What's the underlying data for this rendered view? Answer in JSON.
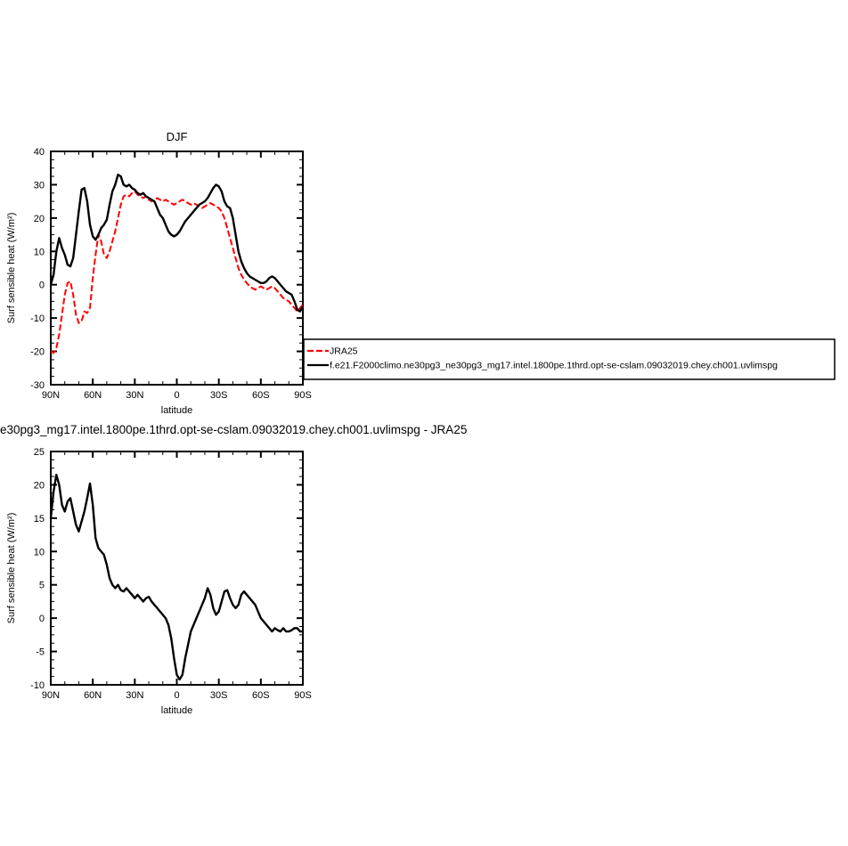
{
  "page": {
    "background": "#ffffff"
  },
  "chart_data": [
    {
      "name": "chart-djf",
      "type": "line",
      "title": "DJF",
      "xlabel": "latitude",
      "ylabel": "Surf sensible heat (W/m²)",
      "xlim": [
        90,
        -90
      ],
      "ylim": [
        -30,
        40
      ],
      "xticks": [
        {
          "v": 90,
          "label": "90N"
        },
        {
          "v": 60,
          "label": "60N"
        },
        {
          "v": 30,
          "label": "30N"
        },
        {
          "v": 0,
          "label": "0"
        },
        {
          "v": -30,
          "label": "30S"
        },
        {
          "v": -60,
          "label": "60S"
        },
        {
          "v": -90,
          "label": "90S"
        }
      ],
      "x_minor_step": 10,
      "ytick_step": 10,
      "y_minor_step": 2.5,
      "grid": false,
      "legend": {
        "position": "right-of-plot",
        "entries": [
          {
            "label": "JRA25",
            "color": "#ff0000",
            "dash": "7 3"
          },
          {
            "label": "f.e21.F2000climo.ne30pg3_ne30pg3_mg17.intel.1800pe.1thrd.opt-se-cslam.09032019.chey.ch001.uvlimspg",
            "color": "#000000",
            "dash": ""
          }
        ]
      },
      "x": [
        90,
        88,
        86,
        84,
        82,
        80,
        78,
        76,
        74,
        72,
        70,
        68,
        66,
        64,
        62,
        60,
        58,
        56,
        54,
        52,
        50,
        48,
        46,
        44,
        42,
        40,
        38,
        36,
        34,
        32,
        30,
        28,
        26,
        24,
        22,
        20,
        18,
        16,
        14,
        12,
        10,
        8,
        6,
        4,
        2,
        0,
        -2,
        -4,
        -6,
        -8,
        -10,
        -12,
        -14,
        -16,
        -18,
        -20,
        -22,
        -24,
        -26,
        -28,
        -30,
        -32,
        -34,
        -36,
        -38,
        -40,
        -42,
        -44,
        -46,
        -48,
        -50,
        -52,
        -54,
        -56,
        -58,
        -60,
        -62,
        -64,
        -66,
        -68,
        -70,
        -72,
        -74,
        -76,
        -78,
        -80,
        -82,
        -84,
        -86,
        -88,
        -90
      ],
      "series": [
        {
          "name": "JRA25",
          "color": "#ff0000",
          "dash": "7 3",
          "width": 2,
          "values": [
            -20,
            -20.5,
            -19,
            -15,
            -9,
            -3,
            0.5,
            1,
            -3,
            -9,
            -11.5,
            -11,
            -8,
            -8.5,
            -7,
            2,
            9,
            15,
            13,
            9,
            8,
            10,
            13,
            16,
            20,
            24,
            26.5,
            27,
            26.5,
            27.5,
            28,
            27,
            26.5,
            26,
            26.5,
            25.5,
            25,
            25.5,
            26,
            25.5,
            25,
            25.5,
            25,
            24.5,
            24,
            24.5,
            25,
            25.5,
            25,
            24.5,
            24,
            24.5,
            24,
            23.5,
            23,
            23.5,
            24,
            24.5,
            24,
            23.5,
            23,
            22,
            20,
            17,
            14,
            11,
            8,
            5,
            3,
            1.5,
            0.5,
            -0.5,
            -1,
            -1.5,
            -1,
            -0.5,
            -1,
            -1.5,
            -1,
            -0.5,
            -1,
            -2,
            -3,
            -4,
            -4.5,
            -5,
            -6,
            -7,
            -8,
            -7,
            -6
          ]
        },
        {
          "name": "f.e21.F2000climo.ne30pg3_ne30pg3_mg17.intel.1800pe.1thrd.opt-se-cslam.09032019.chey.ch001.uvlimspg",
          "color": "#000000",
          "dash": "",
          "width": 2.4,
          "values": [
            0,
            3,
            10,
            14,
            11,
            9,
            6,
            5.5,
            8,
            15,
            22,
            28.5,
            29,
            25,
            18,
            14.5,
            13.5,
            15,
            17,
            18,
            19.5,
            24,
            28,
            30,
            33,
            32.5,
            30,
            29.5,
            30,
            29,
            28.5,
            27.5,
            27,
            27.5,
            26.5,
            26,
            25.5,
            25,
            23,
            21,
            20,
            18,
            16,
            15,
            14.5,
            15,
            16,
            17.5,
            19,
            20,
            21,
            22,
            23,
            24,
            24.5,
            25,
            26,
            27.5,
            29,
            30,
            29.5,
            28,
            25,
            23.5,
            23,
            20,
            15,
            10,
            7,
            5,
            3.5,
            2.5,
            2,
            1.5,
            1,
            0.5,
            0.5,
            1,
            2,
            2.5,
            2,
            1,
            0,
            -1,
            -2,
            -2.5,
            -3,
            -5,
            -7.5,
            -8,
            -6.5
          ]
        }
      ]
    },
    {
      "name": "chart-diff",
      "type": "line",
      "title_left": "e30pg3_mg17.intel.1800pe.1thrd.opt-se-cslam.09032019.chey.ch001.uvlimspg - JRA25",
      "xlabel": "latitude",
      "ylabel": "Surf sensible heat (W/m²)",
      "xlim": [
        90,
        -90
      ],
      "ylim": [
        -10,
        25
      ],
      "xticks": [
        {
          "v": 90,
          "label": "90N"
        },
        {
          "v": 60,
          "label": "60N"
        },
        {
          "v": 30,
          "label": "30N"
        },
        {
          "v": 0,
          "label": "0"
        },
        {
          "v": -30,
          "label": "30S"
        },
        {
          "v": -60,
          "label": "60S"
        },
        {
          "v": -90,
          "label": "90S"
        }
      ],
      "x_minor_step": 10,
      "ytick_step": 5,
      "y_minor_step": 1.25,
      "grid": false,
      "x": [
        90,
        88,
        86,
        84,
        82,
        80,
        78,
        76,
        74,
        72,
        70,
        68,
        66,
        64,
        62,
        60,
        58,
        56,
        54,
        52,
        50,
        48,
        46,
        44,
        42,
        40,
        38,
        36,
        34,
        32,
        30,
        28,
        26,
        24,
        22,
        20,
        18,
        16,
        14,
        12,
        10,
        8,
        6,
        4,
        2,
        0,
        -2,
        -4,
        -6,
        -8,
        -10,
        -12,
        -14,
        -16,
        -18,
        -20,
        -22,
        -24,
        -26,
        -28,
        -30,
        -32,
        -34,
        -36,
        -38,
        -40,
        -42,
        -44,
        -46,
        -48,
        -50,
        -52,
        -54,
        -56,
        -58,
        -60,
        -62,
        -64,
        -66,
        -68,
        -70,
        -72,
        -74,
        -76,
        -78,
        -80,
        -82,
        -84,
        -86,
        -88,
        -90
      ],
      "series": [
        {
          "name": "difference-model-minus-JRA25",
          "color": "#000000",
          "dash": "",
          "width": 2.4,
          "values": [
            15,
            19,
            21.5,
            20,
            17,
            16,
            17.5,
            18,
            16,
            14,
            13,
            14.5,
            16,
            18,
            20.2,
            17,
            12,
            10.5,
            10,
            9.5,
            8,
            6,
            5,
            4.5,
            5,
            4.2,
            4,
            4.5,
            4,
            3.5,
            3,
            3.5,
            3,
            2.5,
            3,
            3.2,
            2.5,
            2,
            1.5,
            1,
            0.5,
            0,
            -1,
            -3,
            -6,
            -8.5,
            -9.2,
            -8.5,
            -6,
            -4,
            -2,
            -1,
            0,
            1,
            2,
            3,
            4.5,
            3.5,
            1.5,
            0.5,
            1,
            2.5,
            4,
            4.2,
            3,
            2,
            1.5,
            2,
            3.5,
            4,
            3.5,
            3,
            2.5,
            2,
            1,
            0,
            -0.5,
            -1,
            -1.5,
            -2,
            -1.5,
            -1.8,
            -2,
            -1.5,
            -2,
            -2,
            -1.8,
            -1.5,
            -1.5,
            -2,
            -2
          ]
        }
      ]
    }
  ]
}
